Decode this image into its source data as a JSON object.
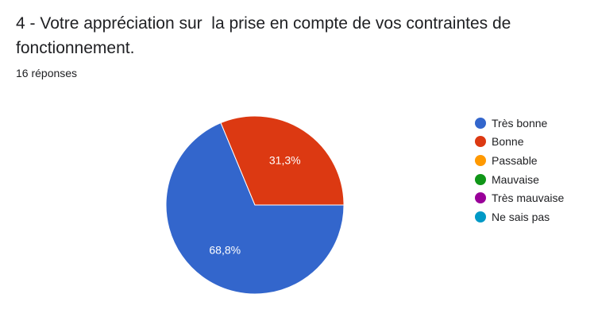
{
  "question": {
    "title": "4 - Votre appréciation sur  la prise en compte de vos contraintes de fonctionnement.",
    "responses": "16 réponses"
  },
  "chart_data": {
    "type": "pie",
    "title": "4 - Votre appréciation sur  la prise en compte de vos contraintes de fonctionnement.",
    "total_responses": 16,
    "categories": [
      "Très bonne",
      "Bonne",
      "Passable",
      "Mauvaise",
      "Très mauvaise",
      "Ne sais pas"
    ],
    "values": [
      68.8,
      31.3,
      0,
      0,
      0,
      0
    ],
    "labels": [
      "68,8%",
      "31,3%",
      "",
      "",
      "",
      ""
    ],
    "colors": [
      "#3366cc",
      "#dc3912",
      "#ff9900",
      "#109618",
      "#990099",
      "#0099c6"
    ],
    "legend_position": "right"
  }
}
